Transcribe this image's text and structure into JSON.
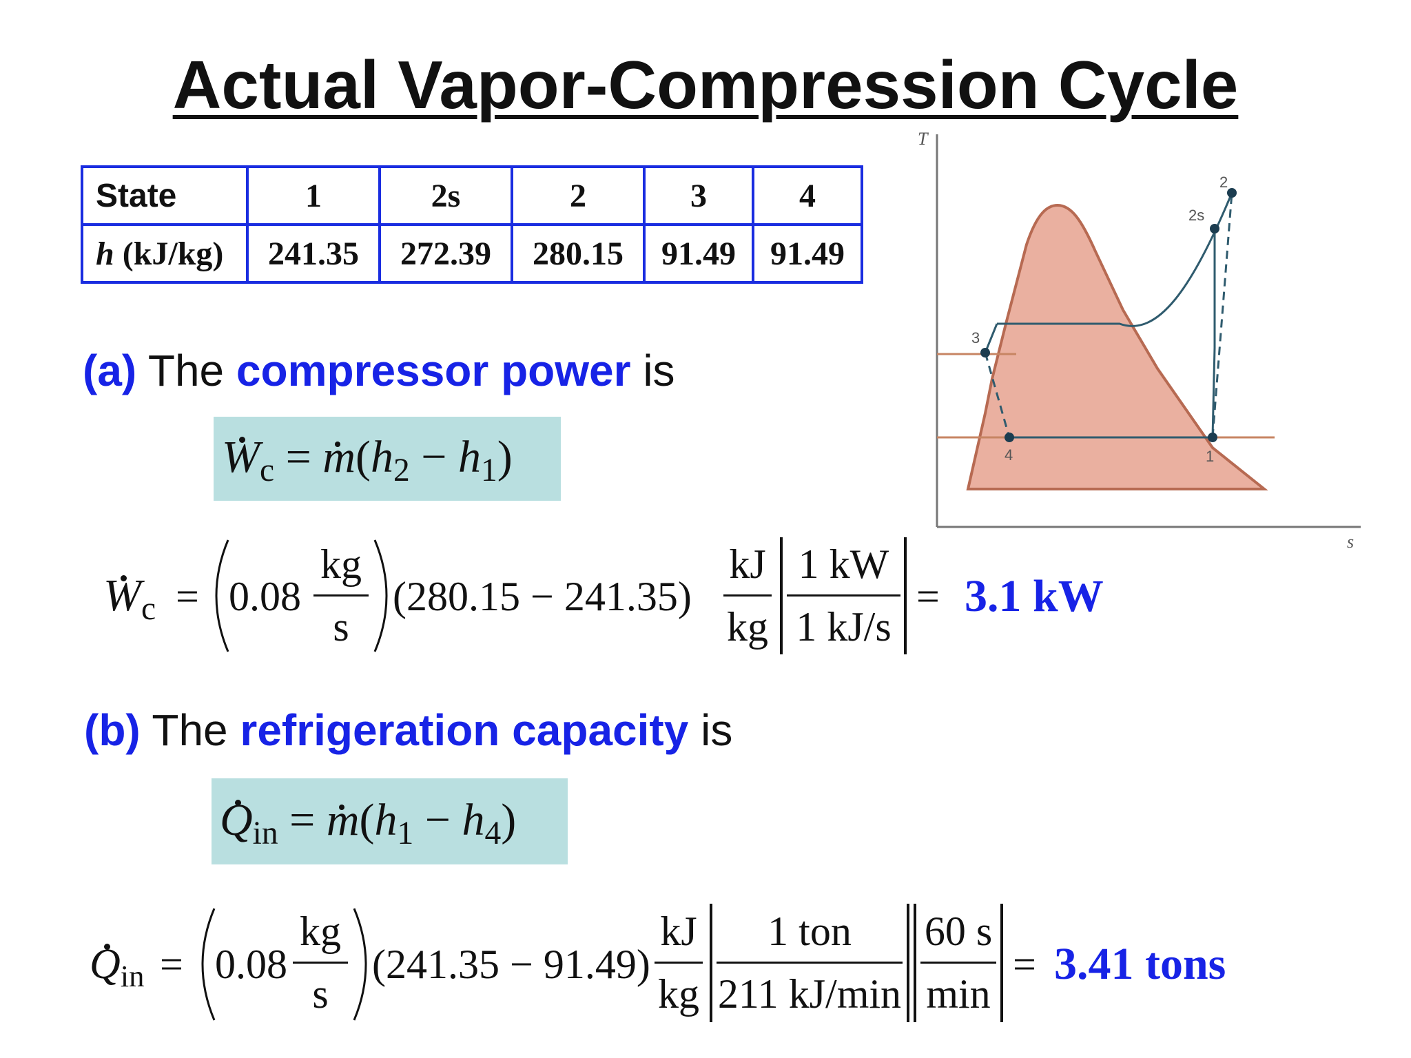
{
  "title": "Actual Vapor-Compression Cycle",
  "state_table": {
    "header_label": "State",
    "row_label_symbol": "h",
    "row_label_unit": "(kJ/kg)",
    "states": [
      "1",
      "2s",
      "2",
      "3",
      "4"
    ],
    "h_values": [
      "241.35",
      "272.39",
      "280.15",
      "91.49",
      "91.49"
    ]
  },
  "part_a": {
    "letter": "(a)",
    "pre": "The",
    "highlight": "compressor power",
    "post": "is",
    "formula": {
      "lhs_symbol": "W",
      "lhs_sub": "c",
      "rhs_symbol": "m",
      "h_a": "2",
      "h_b": "1"
    },
    "calc": {
      "mass_flow": "0.08",
      "mass_unit_num": "kg",
      "mass_unit_den": "s",
      "difference": "(280.15 − 241.35)",
      "unit_num": "kJ",
      "unit_den": "kg",
      "conv_num": "1 kW",
      "conv_den": "1 kJ/s",
      "equals": "=",
      "result": "3.1 kW"
    }
  },
  "part_b": {
    "letter": "(b)",
    "pre": "The",
    "highlight": "refrigeration capacity",
    "post": "is",
    "formula": {
      "lhs_symbol": "Q",
      "lhs_sub": "in",
      "rhs_symbol": "m",
      "h_a": "1",
      "h_b": "4"
    },
    "calc": {
      "mass_flow": "0.08",
      "mass_unit_num": "kg",
      "mass_unit_den": "s",
      "difference": "(241.35 − 91.49)",
      "unit_num": "kJ",
      "unit_den": "kg",
      "conv1_num": "1 ton",
      "conv1_den": "211 kJ/min",
      "conv2_num": "60 s",
      "conv2_den": "min",
      "equals": "=",
      "result": "3.41 tons"
    }
  },
  "ts_diagram": {
    "y_axis_label": "T",
    "x_axis_label": "s",
    "point_labels": [
      "1",
      "2s",
      "2",
      "3",
      "4"
    ],
    "colors": {
      "dome_fill": "#eab0a0",
      "dome_edge": "#b76a52",
      "line": "#2f5b6e",
      "isotherm": "#c78563"
    }
  }
}
